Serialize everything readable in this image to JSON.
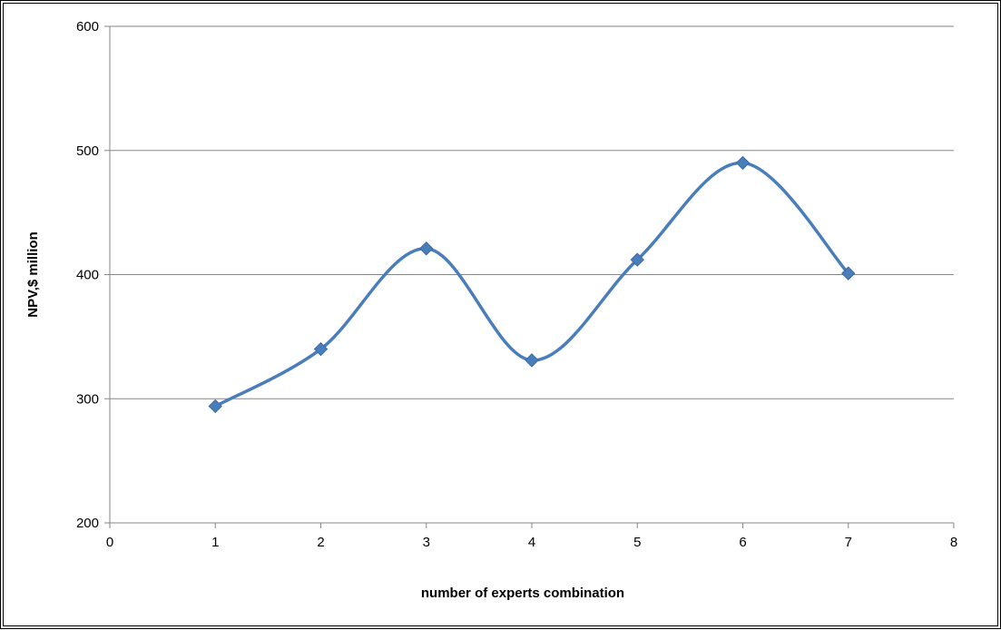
{
  "chart_data": {
    "type": "line",
    "title": "",
    "xlabel": "number of experts combination",
    "ylabel": "NPV,$ million",
    "xlim": [
      0,
      8
    ],
    "ylim": [
      200,
      600
    ],
    "x_ticks": [
      0,
      1,
      2,
      3,
      4,
      5,
      6,
      7,
      8
    ],
    "y_ticks": [
      200,
      300,
      400,
      500,
      600
    ],
    "grid": "horizontal major gridlines",
    "legend": "none",
    "smooth": true,
    "marker": "diamond",
    "colors": {
      "series": "#4a7ebb",
      "marker": "#4a7ebb",
      "grid": "#868686",
      "axis": "#868686"
    },
    "series": [
      {
        "x": [
          1,
          2,
          3,
          4,
          5,
          6,
          7
        ],
        "values": [
          294,
          340,
          421,
          331,
          412,
          490,
          401
        ]
      }
    ]
  }
}
